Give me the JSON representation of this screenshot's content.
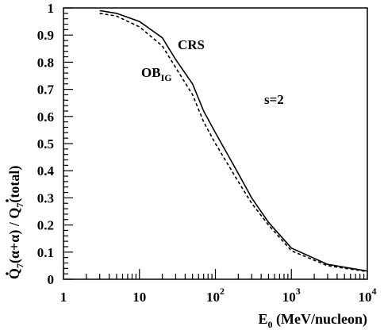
{
  "chart_data": {
    "type": "line",
    "title": "",
    "xlabel": {
      "main": "E",
      "sub": "0",
      "rest": " (MeV/nucleon)"
    },
    "ylabel": {
      "q1": "Q",
      "sub1": "7",
      "mid": "(α+α) / ",
      "q2": "Q",
      "sub2": "7",
      "rest": "(total)"
    },
    "x_scale": "log",
    "xlim": [
      1,
      10000
    ],
    "ylim": [
      0,
      1
    ],
    "grid": false,
    "x_ticks": [
      {
        "value": 1,
        "base": "1",
        "exp": ""
      },
      {
        "value": 10,
        "base": "10",
        "exp": ""
      },
      {
        "value": 100,
        "base": "10",
        "exp": "2"
      },
      {
        "value": 1000,
        "base": "10",
        "exp": "3"
      },
      {
        "value": 10000,
        "base": "10",
        "exp": "4"
      }
    ],
    "y_ticks": [
      {
        "value": 0,
        "label": "0"
      },
      {
        "value": 0.1,
        "label": "0.1"
      },
      {
        "value": 0.2,
        "label": "0.2"
      },
      {
        "value": 0.3,
        "label": "0.3"
      },
      {
        "value": 0.4,
        "label": "0.4"
      },
      {
        "value": 0.5,
        "label": "0.5"
      },
      {
        "value": 0.6,
        "label": "0.6"
      },
      {
        "value": 0.7,
        "label": "0.7"
      },
      {
        "value": 0.8,
        "label": "0.8"
      },
      {
        "value": 0.9,
        "label": "0.9"
      },
      {
        "value": 1,
        "label": "1"
      }
    ],
    "series": [
      {
        "name": "CRS",
        "style": "solid",
        "x": [
          3,
          5,
          10,
          20,
          30,
          50,
          70,
          100,
          200,
          300,
          500,
          1000,
          3000,
          10000
        ],
        "y": [
          0.99,
          0.98,
          0.95,
          0.89,
          0.81,
          0.72,
          0.62,
          0.54,
          0.39,
          0.3,
          0.21,
          0.115,
          0.055,
          0.03
        ]
      },
      {
        "name": "OB",
        "name_sub": "IG",
        "style": "dashed",
        "x": [
          3,
          5,
          10,
          20,
          30,
          50,
          70,
          100,
          200,
          300,
          500,
          1000,
          3000,
          10000
        ],
        "y": [
          0.98,
          0.97,
          0.93,
          0.86,
          0.78,
          0.68,
          0.58,
          0.5,
          0.36,
          0.28,
          0.2,
          0.105,
          0.05,
          0.028
        ]
      }
    ],
    "annotations": [
      {
        "text": "s=2"
      }
    ]
  }
}
